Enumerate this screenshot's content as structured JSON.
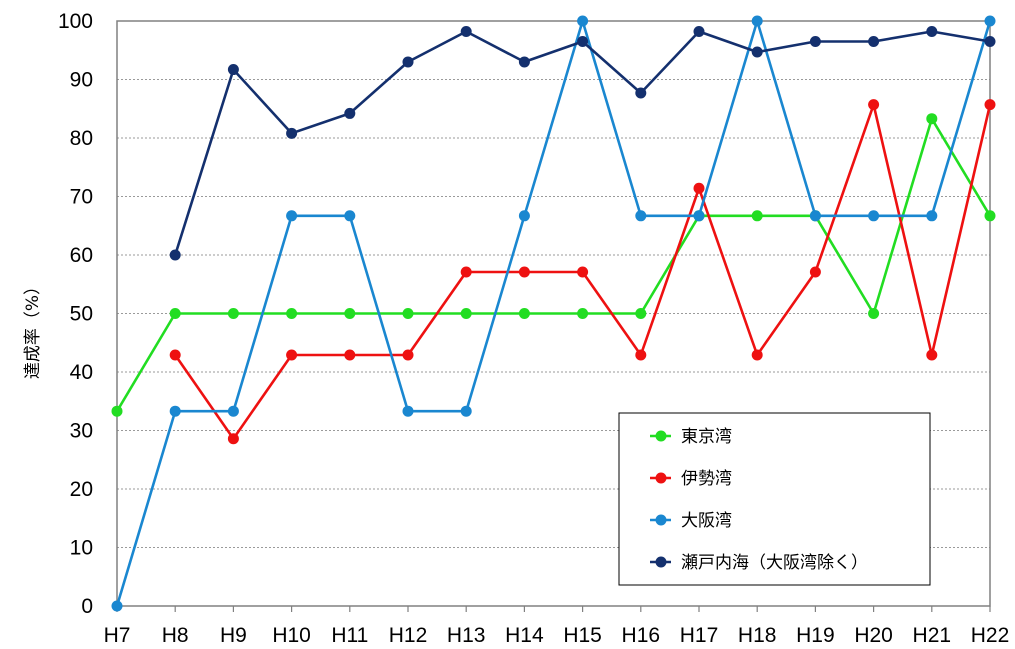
{
  "chart_data": {
    "type": "line",
    "ylabel": "達成率（%）",
    "ylim": [
      0,
      100
    ],
    "yticks": [
      0,
      10,
      20,
      30,
      40,
      50,
      60,
      70,
      80,
      90,
      100
    ],
    "grid": "horizontal-dotted",
    "legend_position": "bottom-right",
    "categories": [
      "H7",
      "H8",
      "H9",
      "H10",
      "H11",
      "H12",
      "H13",
      "H14",
      "H15",
      "H16",
      "H17",
      "H18",
      "H19",
      "H20",
      "H21",
      "H22"
    ],
    "series": [
      {
        "name": "東京湾",
        "color": "#22dd22",
        "values": [
          33.3,
          50,
          50,
          50,
          50,
          50,
          50,
          50,
          50,
          50,
          66.7,
          66.7,
          66.7,
          50,
          83.3,
          66.7
        ]
      },
      {
        "name": "伊勢湾",
        "color": "#ee1111",
        "values": [
          null,
          42.9,
          28.6,
          42.9,
          42.9,
          42.9,
          57.1,
          57.1,
          57.1,
          42.9,
          71.4,
          42.9,
          57.1,
          85.7,
          42.9,
          85.7
        ]
      },
      {
        "name": "大阪湾",
        "color": "#1a87d0",
        "values": [
          0,
          33.3,
          33.3,
          66.7,
          66.7,
          33.3,
          33.3,
          66.7,
          100,
          66.7,
          66.7,
          100,
          66.7,
          66.7,
          66.7,
          100
        ]
      },
      {
        "name": "瀬戸内海（大阪湾除く）",
        "color": "#14306e",
        "values": [
          null,
          60,
          91.7,
          80.8,
          84.2,
          93,
          98.2,
          93,
          96.5,
          87.7,
          98.2,
          94.7,
          96.5,
          96.5,
          98.2,
          96.5
        ]
      }
    ]
  }
}
